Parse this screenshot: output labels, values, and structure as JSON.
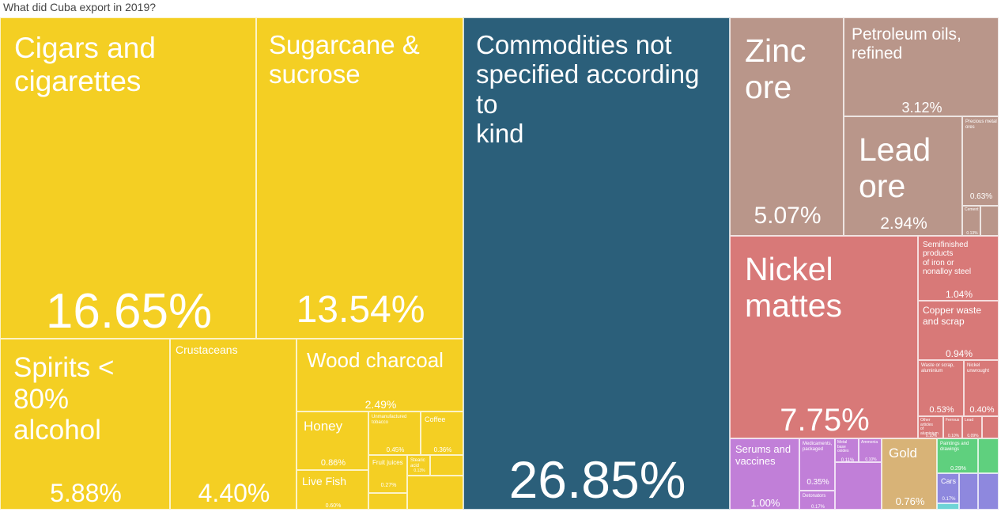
{
  "chart_data": {
    "type": "treemap",
    "title": "What did Cuba export in 2019?",
    "colors": {
      "food": "#f4cf23",
      "commodities": "#2b5f7a",
      "minerals": "#b9968a",
      "metals": "#d87978",
      "chemicals": "#c17fd8",
      "precious": "#d8b377",
      "vehicles": "#8e88de",
      "arts": "#5fd07e",
      "misc": "#6ed3d6"
    },
    "items": [
      {
        "name": "Commodities not specified according to kind",
        "value": 26.85,
        "pct": "26.85%",
        "group": "commodities"
      },
      {
        "name": "Cigars and cigarettes",
        "value": 16.65,
        "pct": "16.65%",
        "group": "food"
      },
      {
        "name": "Sugarcane & sucrose",
        "value": 13.54,
        "pct": "13.54%",
        "group": "food"
      },
      {
        "name": "Nickel mattes",
        "value": 7.75,
        "pct": "7.75%",
        "group": "metals"
      },
      {
        "name": "Spirits < 80% alcohol",
        "value": 5.88,
        "pct": "5.88%",
        "group": "food"
      },
      {
        "name": "Zinc ore",
        "value": 5.07,
        "pct": "5.07%",
        "group": "minerals"
      },
      {
        "name": "Crustaceans",
        "value": 4.4,
        "pct": "4.40%",
        "group": "food"
      },
      {
        "name": "Petroleum oils, refined",
        "value": 3.12,
        "pct": "3.12%",
        "group": "minerals"
      },
      {
        "name": "Lead ore",
        "value": 2.94,
        "pct": "2.94%",
        "group": "minerals"
      },
      {
        "name": "Wood charcoal",
        "value": 2.49,
        "pct": "2.49%",
        "group": "food"
      },
      {
        "name": "Semifinished products of iron or nonalloy steel",
        "value": 1.04,
        "pct": "1.04%",
        "group": "metals"
      },
      {
        "name": "Serums and vaccines",
        "value": 1.0,
        "pct": "1.00%",
        "group": "chemicals"
      },
      {
        "name": "Copper waste and scrap",
        "value": 0.94,
        "pct": "0.94%",
        "group": "metals"
      },
      {
        "name": "Honey",
        "value": 0.86,
        "pct": "0.86%",
        "group": "food"
      },
      {
        "name": "Gold",
        "value": 0.76,
        "pct": "0.76%",
        "group": "precious"
      },
      {
        "name": "Precious metal ores",
        "value": 0.63,
        "pct": "0.63%",
        "group": "minerals"
      },
      {
        "name": "Live Fish",
        "value": 0.6,
        "pct": "0.60%",
        "group": "food"
      },
      {
        "name": "Waste or scrap, aluminium",
        "value": 0.53,
        "pct": "0.53%",
        "group": "metals"
      },
      {
        "name": "Unmanufactured tobacco",
        "value": 0.45,
        "pct": "0.45%",
        "group": "food"
      },
      {
        "name": "Nickel unwrought",
        "value": 0.4,
        "pct": "0.40%",
        "group": "metals"
      },
      {
        "name": "Coffee",
        "value": 0.36,
        "pct": "0.36%",
        "group": "food"
      },
      {
        "name": "Medicaments, packaged",
        "value": 0.35,
        "pct": "0.35%",
        "group": "chemicals"
      },
      {
        "name": "Paintings and drawings",
        "value": 0.29,
        "pct": "0.29%",
        "group": "arts"
      },
      {
        "name": "Fruit juices",
        "value": 0.27,
        "pct": "0.27%",
        "group": "food"
      },
      {
        "name": "Detonators",
        "value": 0.17,
        "pct": "0.17%",
        "group": "chemicals"
      },
      {
        "name": "Cars",
        "value": 0.17,
        "pct": "0.17%",
        "group": "vehicles"
      },
      {
        "name": "Stearic acid",
        "value": 0.13,
        "pct": "0.13%",
        "group": "food"
      },
      {
        "name": "Cement",
        "value": 0.13,
        "pct": "0.13%",
        "group": "minerals"
      },
      {
        "name": "Metal base oxides",
        "value": 0.11,
        "pct": "0.11%",
        "group": "chemicals"
      },
      {
        "name": "Ferrous",
        "value": 0.1,
        "pct": "0.10%",
        "group": "metals"
      },
      {
        "name": "Ammonia",
        "value": 0.1,
        "pct": "0.10%",
        "group": "chemicals"
      },
      {
        "name": "Other articles of aluminium",
        "value": 0.1,
        "pct": "0.10%",
        "group": "metals"
      },
      {
        "name": "Lead",
        "value": 0.09,
        "pct": "0.09%",
        "group": "metals"
      }
    ]
  }
}
